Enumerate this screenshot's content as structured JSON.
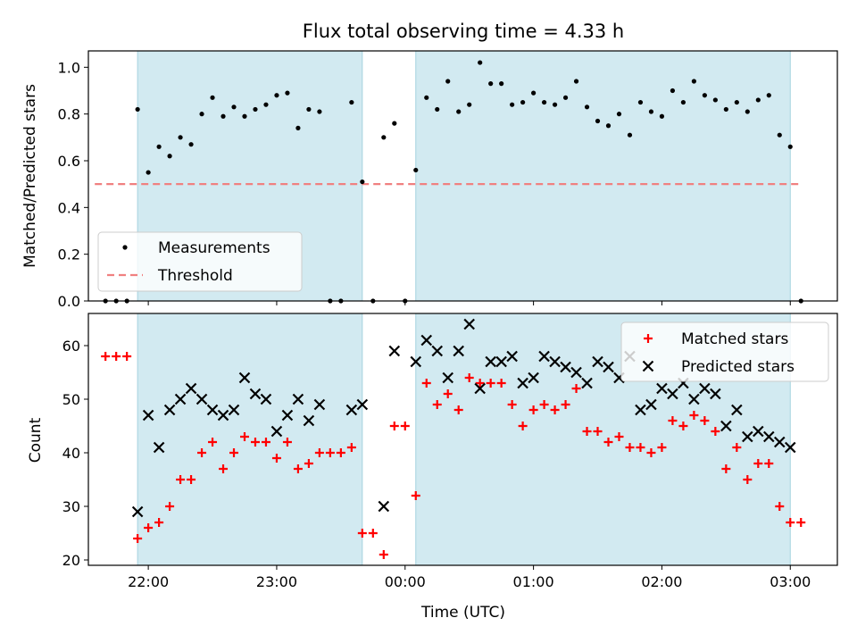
{
  "chart_data": [
    {
      "type": "scatter",
      "title": "Flux total observing time = 4.33 h",
      "xlabel": "",
      "ylabel": "Matched/Predicted stars",
      "xlim": [
        "21:32",
        "03:22"
      ],
      "ylim": [
        0,
        1.07
      ],
      "yticks": [
        "0.0",
        "0.2",
        "0.4",
        "0.6",
        "0.8",
        "1.0"
      ],
      "yticks_values": [
        0,
        0.2,
        0.4,
        0.6,
        0.8,
        1.0
      ],
      "shaded_spans": [
        [
          "21:55",
          "23:40"
        ],
        [
          "00:05",
          "03:00"
        ]
      ],
      "shade_color": "#add8e6",
      "legend": {
        "position": "lower-left",
        "entries": [
          "Measurements",
          "Threshold"
        ]
      },
      "threshold": {
        "name": "Threshold",
        "value": 0.5,
        "x_range": [
          "21:35",
          "03:05"
        ],
        "color": "#f08080"
      },
      "series": [
        {
          "name": "Measurements",
          "color": "#000000",
          "points": [
            [
              "21:40",
              0
            ],
            [
              "21:45",
              0
            ],
            [
              "21:50",
              0
            ],
            [
              "21:55",
              0.82
            ],
            [
              "22:00",
              0.55
            ],
            [
              "22:05",
              0.66
            ],
            [
              "22:10",
              0.62
            ],
            [
              "22:15",
              0.7
            ],
            [
              "22:20",
              0.67
            ],
            [
              "22:25",
              0.8
            ],
            [
              "22:30",
              0.87
            ],
            [
              "22:35",
              0.79
            ],
            [
              "22:40",
              0.83
            ],
            [
              "22:45",
              0.79
            ],
            [
              "22:50",
              0.82
            ],
            [
              "22:55",
              0.84
            ],
            [
              "23:00",
              0.88
            ],
            [
              "23:05",
              0.89
            ],
            [
              "23:10",
              0.74
            ],
            [
              "23:15",
              0.82
            ],
            [
              "23:20",
              0.81
            ],
            [
              "23:25",
              0
            ],
            [
              "23:30",
              0
            ],
            [
              "23:35",
              0.85
            ],
            [
              "23:40",
              0.51
            ],
            [
              "23:45",
              0
            ],
            [
              "23:50",
              0.7
            ],
            [
              "23:55",
              0.76
            ],
            [
              "00:00",
              0
            ],
            [
              "00:05",
              0.56
            ],
            [
              "00:10",
              0.87
            ],
            [
              "00:15",
              0.82
            ],
            [
              "00:20",
              0.94
            ],
            [
              "00:25",
              0.81
            ],
            [
              "00:30",
              0.84
            ],
            [
              "00:35",
              1.02
            ],
            [
              "00:40",
              0.93
            ],
            [
              "00:45",
              0.93
            ],
            [
              "00:50",
              0.84
            ],
            [
              "00:55",
              0.85
            ],
            [
              "01:00",
              0.89
            ],
            [
              "01:05",
              0.85
            ],
            [
              "01:10",
              0.84
            ],
            [
              "01:15",
              0.87
            ],
            [
              "01:20",
              0.94
            ],
            [
              "01:25",
              0.83
            ],
            [
              "01:30",
              0.77
            ],
            [
              "01:35",
              0.75
            ],
            [
              "01:40",
              0.8
            ],
            [
              "01:45",
              0.71
            ],
            [
              "01:50",
              0.85
            ],
            [
              "01:55",
              0.81
            ],
            [
              "02:00",
              0.79
            ],
            [
              "02:05",
              0.9
            ],
            [
              "02:10",
              0.85
            ],
            [
              "02:15",
              0.94
            ],
            [
              "02:20",
              0.88
            ],
            [
              "02:25",
              0.86
            ],
            [
              "02:30",
              0.82
            ],
            [
              "02:35",
              0.85
            ],
            [
              "02:40",
              0.81
            ],
            [
              "02:45",
              0.86
            ],
            [
              "02:50",
              0.88
            ],
            [
              "02:55",
              0.71
            ],
            [
              "03:00",
              0.66
            ],
            [
              "03:05",
              0
            ]
          ]
        }
      ]
    },
    {
      "type": "scatter",
      "title": "",
      "xlabel": "Time (UTC)",
      "ylabel": "Count",
      "xlim": [
        "21:32",
        "03:22"
      ],
      "ylim": [
        19,
        66
      ],
      "xticks": [
        "22:00",
        "23:00",
        "00:00",
        "01:00",
        "02:00",
        "03:00"
      ],
      "yticks": [
        "20",
        "30",
        "40",
        "50",
        "60"
      ],
      "yticks_values": [
        20,
        30,
        40,
        50,
        60
      ],
      "shaded_spans": [
        [
          "21:55",
          "23:40"
        ],
        [
          "00:05",
          "03:00"
        ]
      ],
      "shade_color": "#add8e6",
      "legend": {
        "position": "top-right",
        "entries": [
          "Matched stars",
          "Predicted stars"
        ]
      },
      "series": [
        {
          "name": "Matched stars",
          "marker": "plus",
          "color": "#ff0000",
          "points": [
            [
              "21:40",
              58
            ],
            [
              "21:45",
              58
            ],
            [
              "21:50",
              58
            ],
            [
              "21:55",
              24
            ],
            [
              "22:00",
              26
            ],
            [
              "22:05",
              27
            ],
            [
              "22:10",
              30
            ],
            [
              "22:15",
              35
            ],
            [
              "22:20",
              35
            ],
            [
              "22:25",
              40
            ],
            [
              "22:30",
              42
            ],
            [
              "22:35",
              37
            ],
            [
              "22:40",
              40
            ],
            [
              "22:45",
              43
            ],
            [
              "22:50",
              42
            ],
            [
              "22:55",
              42
            ],
            [
              "23:00",
              39
            ],
            [
              "23:05",
              42
            ],
            [
              "23:10",
              37
            ],
            [
              "23:15",
              38
            ],
            [
              "23:20",
              40
            ],
            [
              "23:25",
              40
            ],
            [
              "23:30",
              40
            ],
            [
              "23:35",
              41
            ],
            [
              "23:40",
              25
            ],
            [
              "23:45",
              25
            ],
            [
              "23:50",
              21
            ],
            [
              "23:55",
              45
            ],
            [
              "00:00",
              45
            ],
            [
              "00:05",
              32
            ],
            [
              "00:10",
              53
            ],
            [
              "00:15",
              49
            ],
            [
              "00:20",
              51
            ],
            [
              "00:25",
              48
            ],
            [
              "00:30",
              54
            ],
            [
              "00:35",
              53
            ],
            [
              "00:40",
              53
            ],
            [
              "00:45",
              53
            ],
            [
              "00:50",
              49
            ],
            [
              "00:55",
              45
            ],
            [
              "01:00",
              48
            ],
            [
              "01:05",
              49
            ],
            [
              "01:10",
              48
            ],
            [
              "01:15",
              49
            ],
            [
              "01:20",
              52
            ],
            [
              "01:25",
              44
            ],
            [
              "01:30",
              44
            ],
            [
              "01:35",
              42
            ],
            [
              "01:40",
              43
            ],
            [
              "01:45",
              41
            ],
            [
              "01:50",
              41
            ],
            [
              "01:55",
              40
            ],
            [
              "02:00",
              41
            ],
            [
              "02:05",
              46
            ],
            [
              "02:10",
              45
            ],
            [
              "02:15",
              47
            ],
            [
              "02:20",
              46
            ],
            [
              "02:25",
              44
            ],
            [
              "02:30",
              37
            ],
            [
              "02:35",
              41
            ],
            [
              "02:40",
              35
            ],
            [
              "02:45",
              38
            ],
            [
              "02:50",
              38
            ],
            [
              "02:55",
              30
            ],
            [
              "03:00",
              27
            ],
            [
              "03:05",
              27
            ]
          ]
        },
        {
          "name": "Predicted stars",
          "marker": "x",
          "color": "#000000",
          "points": [
            [
              "21:55",
              29
            ],
            [
              "22:00",
              47
            ],
            [
              "22:05",
              41
            ],
            [
              "22:10",
              48
            ],
            [
              "22:15",
              50
            ],
            [
              "22:20",
              52
            ],
            [
              "22:25",
              50
            ],
            [
              "22:30",
              48
            ],
            [
              "22:35",
              47
            ],
            [
              "22:40",
              48
            ],
            [
              "22:45",
              54
            ],
            [
              "22:50",
              51
            ],
            [
              "22:55",
              50
            ],
            [
              "23:00",
              44
            ],
            [
              "23:05",
              47
            ],
            [
              "23:10",
              50
            ],
            [
              "23:15",
              46
            ],
            [
              "23:20",
              49
            ],
            [
              "23:35",
              48
            ],
            [
              "23:40",
              49
            ],
            [
              "23:50",
              30
            ],
            [
              "23:55",
              59
            ],
            [
              "00:05",
              57
            ],
            [
              "00:10",
              61
            ],
            [
              "00:15",
              59
            ],
            [
              "00:20",
              54
            ],
            [
              "00:25",
              59
            ],
            [
              "00:30",
              64
            ],
            [
              "00:35",
              52
            ],
            [
              "00:40",
              57
            ],
            [
              "00:45",
              57
            ],
            [
              "00:50",
              58
            ],
            [
              "00:55",
              53
            ],
            [
              "01:00",
              54
            ],
            [
              "01:05",
              58
            ],
            [
              "01:10",
              57
            ],
            [
              "01:15",
              56
            ],
            [
              "01:20",
              55
            ],
            [
              "01:25",
              53
            ],
            [
              "01:30",
              57
            ],
            [
              "01:35",
              56
            ],
            [
              "01:40",
              54
            ],
            [
              "01:45",
              58
            ],
            [
              "01:50",
              48
            ],
            [
              "01:55",
              49
            ],
            [
              "02:00",
              52
            ],
            [
              "02:05",
              51
            ],
            [
              "02:10",
              53
            ],
            [
              "02:15",
              50
            ],
            [
              "02:20",
              52
            ],
            [
              "02:25",
              51
            ],
            [
              "02:30",
              45
            ],
            [
              "02:35",
              48
            ],
            [
              "02:40",
              43
            ],
            [
              "02:45",
              44
            ],
            [
              "02:50",
              43
            ],
            [
              "02:55",
              42
            ],
            [
              "03:00",
              41
            ]
          ]
        }
      ]
    }
  ]
}
